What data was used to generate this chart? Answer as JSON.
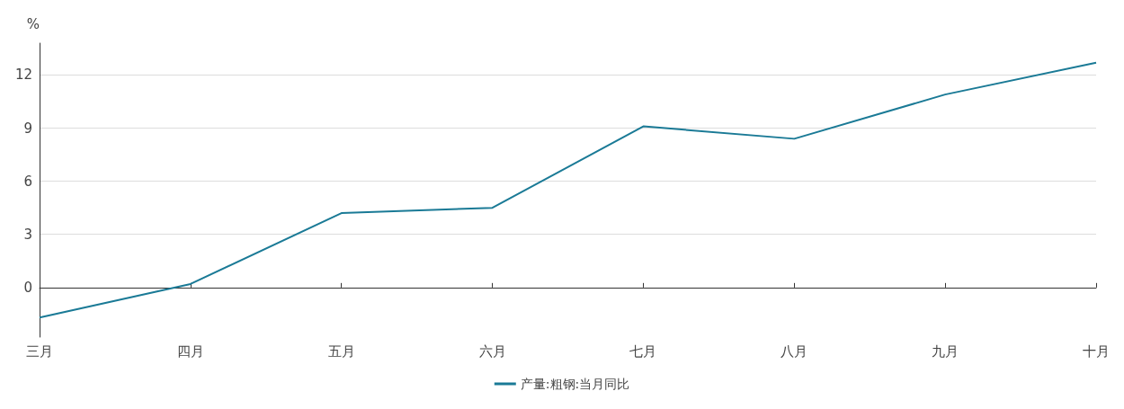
{
  "chart_data": {
    "type": "line",
    "ylabel": "%",
    "categories": [
      "三月",
      "四月",
      "五月",
      "六月",
      "七月",
      "八月",
      "九月",
      "十月"
    ],
    "series": [
      {
        "name": "产量:粗钢:当月同比",
        "color": "#1a7a96",
        "values": [
          -1.7,
          0.2,
          4.2,
          4.5,
          9.1,
          8.4,
          10.9,
          12.7
        ]
      }
    ],
    "ylim": [
      -2.8,
      13.8
    ],
    "yticks": [
      0,
      3,
      6,
      9,
      12
    ],
    "grid": "y",
    "legend": "bottom",
    "marker": "none",
    "line_style": "solid"
  }
}
